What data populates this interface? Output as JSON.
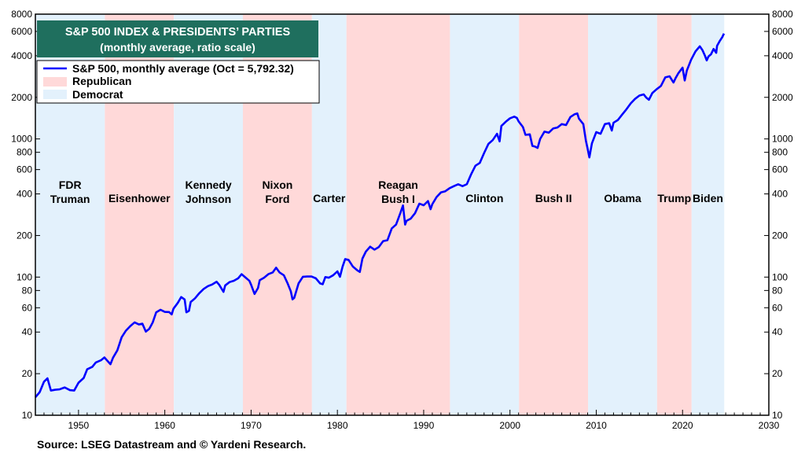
{
  "chart_data": {
    "type": "line",
    "title": "S&P 500 INDEX & PRESIDENTS’ PARTIES",
    "subtitle": "(monthly average, ratio scale)",
    "source": "Source: LSEG Datastream and © Yardeni Research.",
    "x_scale": "linear",
    "y_scale": "log",
    "xlim": [
      1945,
      2030
    ],
    "ylim": [
      10,
      8000
    ],
    "x_ticks": [
      "1950",
      "1960",
      "1970",
      "1980",
      "1990",
      "2000",
      "2010",
      "2020",
      "2030"
    ],
    "y_ticks": [
      "8000",
      "6000",
      "4000",
      "2000",
      "1000",
      "800",
      "600",
      "400",
      "200",
      "100",
      "80",
      "60",
      "40",
      "20",
      "10"
    ],
    "grid": false,
    "legend_placement": "top-left",
    "legend": [
      {
        "label": "S&P 500, monthly average (Oct = 5,792.32)",
        "kind": "line",
        "color": "#0000ff"
      },
      {
        "label": "Republican",
        "kind": "swatch",
        "color": "#ffd9d9"
      },
      {
        "label": "Democrat",
        "kind": "swatch",
        "color": "#e3f1fc"
      }
    ],
    "colors": {
      "line": "#0000ff",
      "republican": "#ffd9d9",
      "democrat": "#e3f1fc",
      "title_bg": "#1f6f5e"
    },
    "presidencies": [
      {
        "label": [
          "FDR",
          "Truman"
        ],
        "party": "democrat",
        "start": 1945.0,
        "end": 1953.05
      },
      {
        "label": [
          "Eisenhower"
        ],
        "party": "republican",
        "start": 1953.05,
        "end": 1961.05
      },
      {
        "label": [
          "Kennedy",
          "Johnson"
        ],
        "party": "democrat",
        "start": 1961.05,
        "end": 1969.05
      },
      {
        "label": [
          "Nixon",
          "Ford"
        ],
        "party": "republican",
        "start": 1969.05,
        "end": 1977.05
      },
      {
        "label": [
          "Carter"
        ],
        "party": "democrat",
        "start": 1977.05,
        "end": 1981.05
      },
      {
        "label": [
          "Reagan",
          "Bush I"
        ],
        "party": "republican",
        "start": 1981.05,
        "end": 1993.05
      },
      {
        "label": [
          "Clinton"
        ],
        "party": "democrat",
        "start": 1993.05,
        "end": 2001.05
      },
      {
        "label": [
          "Bush II"
        ],
        "party": "republican",
        "start": 2001.05,
        "end": 2009.05
      },
      {
        "label": [
          "Obama"
        ],
        "party": "democrat",
        "start": 2009.05,
        "end": 2017.05
      },
      {
        "label": [
          "Trump"
        ],
        "party": "republican",
        "start": 2017.05,
        "end": 2021.05
      },
      {
        "label": [
          "Biden"
        ],
        "party": "democrat",
        "start": 2021.05,
        "end": 2024.83
      }
    ],
    "series": [
      {
        "name": "S&P 500, monthly average (Oct = 5,792.32)",
        "x": [
          1945.0,
          1945.5,
          1946.0,
          1946.4,
          1946.8,
          1947.3,
          1947.8,
          1948.4,
          1949.0,
          1949.5,
          1950.0,
          1950.6,
          1951.0,
          1951.6,
          1952.0,
          1952.6,
          1953.0,
          1953.7,
          1954.0,
          1954.5,
          1955.0,
          1955.5,
          1956.0,
          1956.5,
          1957.0,
          1957.4,
          1957.8,
          1958.2,
          1958.6,
          1959.0,
          1959.5,
          1960.0,
          1960.5,
          1960.8,
          1961.0,
          1961.5,
          1961.9,
          1962.3,
          1962.5,
          1962.8,
          1963.0,
          1963.5,
          1964.0,
          1964.5,
          1965.0,
          1965.5,
          1966.0,
          1966.3,
          1966.8,
          1967.0,
          1967.5,
          1968.0,
          1968.5,
          1968.9,
          1969.3,
          1969.8,
          1970.0,
          1970.4,
          1970.8,
          1971.0,
          1971.5,
          1972.0,
          1972.5,
          1972.9,
          1973.3,
          1973.8,
          1974.2,
          1974.6,
          1974.8,
          1975.0,
          1975.5,
          1976.0,
          1976.5,
          1977.0,
          1977.5,
          1978.0,
          1978.3,
          1978.6,
          1979.0,
          1979.5,
          1980.0,
          1980.3,
          1980.6,
          1980.9,
          1981.3,
          1981.8,
          1982.3,
          1982.6,
          1982.9,
          1983.3,
          1983.8,
          1984.3,
          1984.8,
          1985.3,
          1985.8,
          1986.3,
          1986.8,
          1987.3,
          1987.6,
          1987.85,
          1988.0,
          1988.5,
          1989.0,
          1989.5,
          1990.0,
          1990.5,
          1990.8,
          1991.0,
          1991.5,
          1992.0,
          1992.5,
          1993.0,
          1993.5,
          1994.0,
          1994.5,
          1995.0,
          1995.5,
          1996.0,
          1996.5,
          1997.0,
          1997.5,
          1998.0,
          1998.5,
          1998.8,
          1999.0,
          1999.5,
          2000.0,
          2000.5,
          2000.8,
          2001.0,
          2001.5,
          2001.8,
          2002.3,
          2002.6,
          2002.9,
          2003.2,
          2003.5,
          2004.0,
          2004.5,
          2005.0,
          2005.5,
          2006.0,
          2006.5,
          2007.0,
          2007.5,
          2007.8,
          2008.0,
          2008.5,
          2008.8,
          2009.0,
          2009.2,
          2009.5,
          2010.0,
          2010.5,
          2011.0,
          2011.5,
          2011.8,
          2012.0,
          2012.5,
          2013.0,
          2013.5,
          2014.0,
          2014.5,
          2015.0,
          2015.5,
          2015.8,
          2016.1,
          2016.5,
          2017.0,
          2017.5,
          2018.0,
          2018.5,
          2018.95,
          2019.2,
          2019.5,
          2020.0,
          2020.25,
          2020.5,
          2021.0,
          2021.5,
          2022.0,
          2022.3,
          2022.6,
          2022.8,
          2023.0,
          2023.3,
          2023.6,
          2023.9,
          2024.0,
          2024.3,
          2024.6,
          2024.8
        ],
        "values": [
          13.5,
          14.7,
          17.5,
          18.5,
          15.1,
          15.3,
          15.4,
          15.9,
          15.2,
          15.1,
          17.2,
          18.6,
          21.5,
          22.4,
          24.1,
          25.0,
          26.2,
          23.4,
          26.1,
          29.5,
          36.7,
          41.0,
          44.2,
          47.0,
          45.4,
          46.0,
          40.3,
          42.2,
          47.0,
          55.6,
          58.0,
          56.0,
          55.8,
          53.7,
          59.0,
          65.0,
          71.7,
          68.8,
          55.6,
          57.0,
          66.0,
          70.2,
          76.5,
          82.0,
          86.0,
          88.5,
          92.5,
          88.0,
          78.2,
          87.0,
          92.0,
          94.0,
          98.0,
          105.0,
          100.0,
          94.0,
          88.0,
          75.5,
          83.3,
          95.0,
          99.0,
          105.0,
          108.0,
          117.0,
          108.0,
          103.0,
          91.0,
          79.0,
          69.0,
          70.7,
          90.0,
          100.5,
          101.0,
          101.0,
          98.0,
          90.0,
          88.8,
          100.0,
          99.0,
          103.0,
          110.0,
          100.5,
          119.0,
          135.0,
          133.0,
          119.0,
          112.0,
          109.0,
          136.0,
          153.0,
          166.0,
          158.0,
          165.0,
          182.0,
          185.0,
          225.0,
          240.0,
          291.0,
          330.0,
          240.0,
          255.0,
          265.0,
          290.0,
          340.0,
          331.0,
          355.0,
          310.0,
          337.0,
          380.0,
          410.0,
          418.0,
          440.0,
          455.0,
          470.0,
          455.0,
          470.0,
          555.0,
          640.0,
          670.0,
          790.0,
          920.0,
          980.0,
          1090.0,
          960.0,
          1240.0,
          1330.0,
          1410.0,
          1450.0,
          1420.0,
          1340.0,
          1220.0,
          1070.0,
          1080.0,
          890.0,
          880.0,
          860.0,
          1000.0,
          1130.0,
          1110.0,
          1190.0,
          1210.0,
          1280.0,
          1260.0,
          1440.0,
          1510.0,
          1530.0,
          1400.0,
          1280.0,
          970.0,
          850.0,
          735.0,
          930.0,
          1120.0,
          1090.0,
          1280.0,
          1300.0,
          1150.0,
          1310.0,
          1370.0,
          1500.0,
          1640.0,
          1810.0,
          1950.0,
          2060.0,
          2100.0,
          1990.0,
          1920.0,
          2150.0,
          2290.0,
          2420.0,
          2790.0,
          2840.0,
          2560.0,
          2760.0,
          2980.0,
          3280.0,
          2650.0,
          3130.0,
          3750.0,
          4300.0,
          4680.0,
          4400.0,
          4000.0,
          3700.0,
          3950.0,
          4100.0,
          4480.0,
          4200.0,
          4720.0,
          5100.0,
          5450.0,
          5792.32
        ]
      }
    ]
  }
}
